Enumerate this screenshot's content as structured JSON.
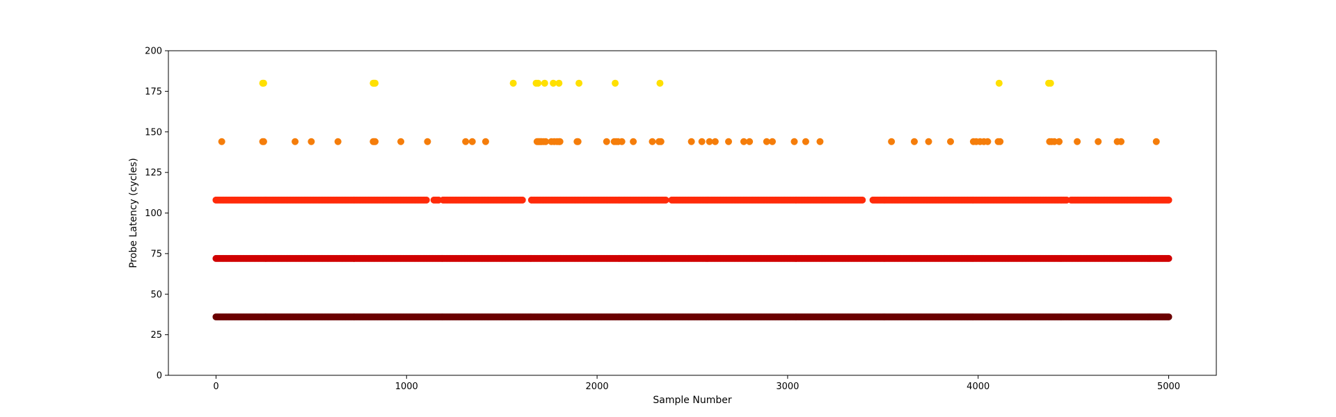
{
  "chart_data": {
    "type": "scatter",
    "title": "",
    "xlabel": "Sample Number",
    "ylabel": "Probe Latency (cycles)",
    "xlim": [
      -250,
      5250
    ],
    "ylim": [
      0,
      200
    ],
    "xticks": [
      0,
      1000,
      2000,
      3000,
      4000,
      5000
    ],
    "yticks": [
      0,
      25,
      50,
      75,
      100,
      125,
      150,
      175,
      200
    ],
    "grid": false,
    "sample_range": [
      0,
      5000
    ],
    "series": [
      {
        "name": "36 cycles",
        "y": 36,
        "color": "#6b0000",
        "continuous": true,
        "x": []
      },
      {
        "name": "72 cycles",
        "y": 72,
        "color": "#d00000",
        "continuous": true,
        "x": []
      },
      {
        "name": "108 cycles",
        "y": 108,
        "color": "#ff2a0a",
        "continuous": false,
        "gaps": [
          [
            1110,
            1140
          ],
          [
            1170,
            1190
          ],
          [
            1612,
            1650
          ],
          [
            2365,
            2385
          ],
          [
            3395,
            3440
          ],
          [
            4470,
            4480
          ]
        ],
        "x": []
      },
      {
        "name": "144 cycles",
        "y": 144,
        "color": "#f57d0a",
        "continuous": false,
        "x": [
          30,
          245,
          250,
          415,
          500,
          640,
          825,
          830,
          835,
          970,
          1110,
          1310,
          1345,
          1415,
          1685,
          1690,
          1695,
          1700,
          1705,
          1710,
          1720,
          1730,
          1760,
          1775,
          1790,
          1800,
          1805,
          1895,
          1900,
          2050,
          2090,
          2100,
          2110,
          2130,
          2190,
          2290,
          2325,
          2335,
          2495,
          2550,
          2590,
          2620,
          2690,
          2770,
          2800,
          2890,
          2920,
          3035,
          3095,
          3170,
          3545,
          3665,
          3740,
          3855,
          3975,
          3990,
          4010,
          4030,
          4050,
          4105,
          4115,
          4375,
          4385,
          4400,
          4425,
          4520,
          4630,
          4730,
          4750,
          4935
        ]
      },
      {
        "name": "180 cycles",
        "y": 180,
        "color": "#ffe000",
        "continuous": false,
        "x": [
          245,
          250,
          825,
          830,
          835,
          1560,
          1680,
          1690,
          1725,
          1770,
          1800,
          1905,
          2095,
          2330,
          4110,
          4370,
          4380
        ]
      }
    ]
  }
}
